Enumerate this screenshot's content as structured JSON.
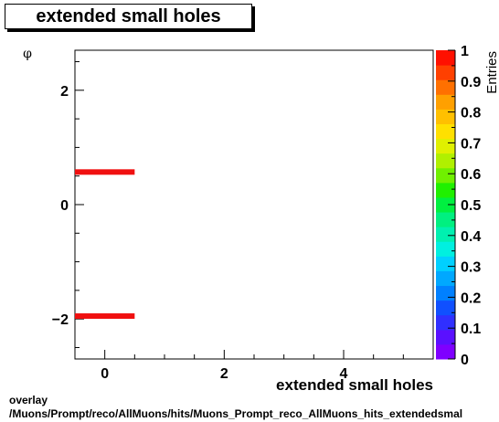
{
  "chart_data": {
    "type": "heatmap",
    "title": "extended small holes",
    "xlabel": "extended small holes",
    "ylabel": "φ",
    "zlabel": "Entries",
    "xlim": [
      -0.5,
      5.5
    ],
    "ylim": [
      -2.7,
      2.7
    ],
    "zlim": [
      0,
      1
    ],
    "x_ticks": [
      0,
      2,
      4
    ],
    "y_ticks": [
      -2,
      0,
      2
    ],
    "z_ticks": [
      0,
      0.1,
      0.2,
      0.3,
      0.4,
      0.5,
      0.6,
      0.7,
      0.8,
      0.9,
      1
    ],
    "bins": [
      {
        "x": [
          -0.5,
          0.5
        ],
        "y": 0.57,
        "value": 1
      },
      {
        "x": [
          -0.5,
          0.5
        ],
        "y": -1.95,
        "value": 1
      }
    ],
    "grid": false
  },
  "footer": {
    "line1": "overlay",
    "line2": "/Muons/Prompt/reco/AllMuons/hits/Muons_Prompt_reco_AllMuons_hits_extendedsmal"
  },
  "colors": {
    "bin_fill": "#f01010",
    "palette": [
      "#7f00ff",
      "#5a10ff",
      "#3030ff",
      "#1050ff",
      "#0080ff",
      "#00a8ff",
      "#00d0ff",
      "#00f0e0",
      "#00f0b0",
      "#00f080",
      "#00f040",
      "#20f000",
      "#70f000",
      "#b0f000",
      "#e0f000",
      "#ffe000",
      "#ffc000",
      "#ffa000",
      "#ff7000",
      "#ff4000",
      "#ff1000"
    ]
  }
}
